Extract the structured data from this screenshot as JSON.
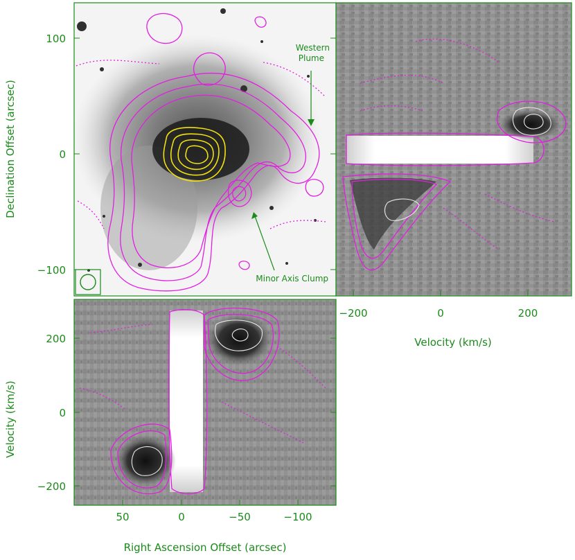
{
  "figure": {
    "panel_sky": {
      "ylabel": "Declination Offset (arcsec)",
      "yticks": [
        "100",
        "0",
        "−100"
      ],
      "annotations": {
        "western_plume_line1": "Western",
        "western_plume_line2": "Plume",
        "minor_axis_clump": "Minor Axis Clump"
      }
    },
    "panel_right": {
      "xlabel": "Velocity (km/s)",
      "xticks": [
        "−200",
        "0",
        "200"
      ]
    },
    "panel_bottom": {
      "xlabel": "Right Ascension Offset (arcsec)",
      "xticks": [
        "50",
        "0",
        "−50",
        "−100"
      ],
      "ylabel": "Velocity (km/s)",
      "yticks": [
        "200",
        "0",
        "−200"
      ]
    },
    "colors": {
      "axis": "#1a8a1a",
      "contour_primary": "#e21ee2",
      "contour_inner": "#f0e010",
      "contour_pv_inner": "#e8e8e8"
    }
  }
}
